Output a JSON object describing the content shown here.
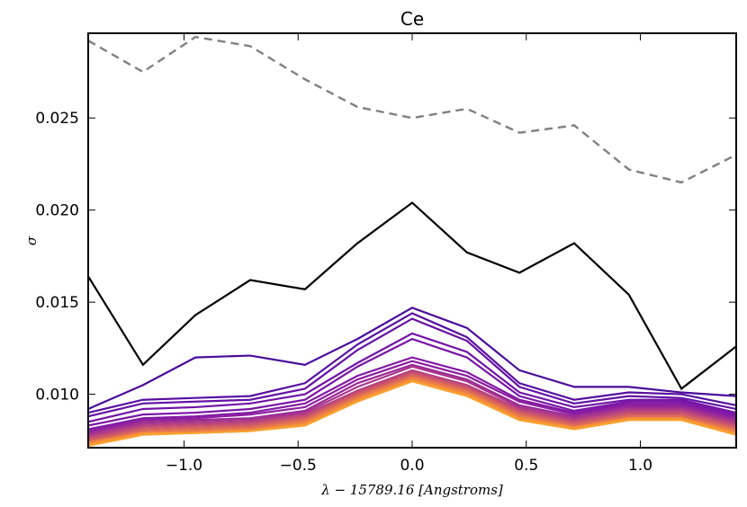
{
  "chart_data": {
    "type": "line",
    "title": "Ce",
    "xlabel": "λ − 15789.16 [Angstroms]",
    "ylabel": "σ",
    "xlim": [
      -1.42,
      1.42
    ],
    "ylim": [
      0.0071,
      0.0296
    ],
    "x": [
      -1.42,
      -1.18,
      -0.95,
      -0.71,
      -0.47,
      -0.24,
      0.0,
      0.24,
      0.47,
      0.71,
      0.95,
      1.18,
      1.42
    ],
    "xticks": [
      -1.0,
      -0.5,
      0.0,
      0.5,
      1.0
    ],
    "xtick_labels": [
      "−1.0",
      "−0.5",
      "0.0",
      "0.5",
      "1.0"
    ],
    "yticks": [
      0.01,
      0.015,
      0.02,
      0.025
    ],
    "ytick_labels": [
      "0.010",
      "0.015",
      "0.020",
      "0.025"
    ],
    "grid": false,
    "series": [
      {
        "style": "dashed",
        "color": "#808080",
        "values": [
          0.0292,
          0.0275,
          0.0294,
          0.0289,
          0.0271,
          0.0256,
          0.025,
          0.0255,
          0.0242,
          0.0246,
          0.0222,
          0.0215,
          0.023
        ]
      },
      {
        "style": "solid",
        "color": "#000000",
        "values": [
          0.0164,
          0.0116,
          0.0143,
          0.0162,
          0.0157,
          0.0182,
          0.0204,
          0.0177,
          0.0166,
          0.0182,
          0.0154,
          0.0103,
          0.0126
        ]
      },
      {
        "style": "solid",
        "color": "#4a0c9c",
        "values": [
          0.0092,
          0.0105,
          0.012,
          0.0121,
          0.0116,
          0.013,
          0.0147,
          0.0136,
          0.0113,
          0.0104,
          0.0104,
          0.0101,
          0.0099
        ]
      },
      {
        "style": "solid",
        "color": "#570fa0",
        "values": [
          0.009,
          0.0097,
          0.0098,
          0.0099,
          0.0106,
          0.0127,
          0.0144,
          0.0131,
          0.0106,
          0.0097,
          0.0101,
          0.01,
          0.0094
        ]
      },
      {
        "style": "solid",
        "color": "#6512a4",
        "values": [
          0.0088,
          0.0095,
          0.0096,
          0.0097,
          0.0103,
          0.0124,
          0.0141,
          0.0129,
          0.0104,
          0.0095,
          0.0099,
          0.0098,
          0.0092
        ]
      },
      {
        "style": "solid",
        "color": "#7113a6",
        "values": [
          0.0085,
          0.0092,
          0.0093,
          0.0095,
          0.01,
          0.0117,
          0.0133,
          0.0123,
          0.0101,
          0.0093,
          0.0097,
          0.0097,
          0.009
        ]
      },
      {
        "style": "solid",
        "color": "#7a15a6",
        "values": [
          0.0083,
          0.0089,
          0.009,
          0.0092,
          0.0097,
          0.0115,
          0.013,
          0.012,
          0.0099,
          0.0091,
          0.0096,
          0.0096,
          0.0089
        ]
      },
      {
        "style": "solid",
        "color": "#8218a4",
        "values": [
          0.0081,
          0.0087,
          0.0088,
          0.009,
          0.0095,
          0.011,
          0.012,
          0.0112,
          0.0097,
          0.009,
          0.0095,
          0.0095,
          0.0088
        ]
      },
      {
        "style": "solid",
        "color": "#8d1fa0",
        "values": [
          0.008,
          0.0086,
          0.0087,
          0.0089,
          0.0093,
          0.0108,
          0.0118,
          0.011,
          0.0096,
          0.0089,
          0.0094,
          0.0094,
          0.0087
        ]
      },
      {
        "style": "solid",
        "color": "#9a2a96",
        "values": [
          0.0079,
          0.0085,
          0.0086,
          0.0087,
          0.0091,
          0.0106,
          0.0116,
          0.0108,
          0.0094,
          0.0088,
          0.0093,
          0.0093,
          0.0086
        ]
      },
      {
        "style": "solid",
        "color": "#a8358b",
        "values": [
          0.0078,
          0.0084,
          0.0085,
          0.0086,
          0.009,
          0.0104,
          0.0115,
          0.0107,
          0.0093,
          0.0087,
          0.0092,
          0.0092,
          0.0085
        ]
      },
      {
        "style": "solid",
        "color": "#b6407f",
        "values": [
          0.0077,
          0.0083,
          0.0084,
          0.0085,
          0.0089,
          0.0102,
          0.0113,
          0.0105,
          0.0092,
          0.0086,
          0.0091,
          0.0091,
          0.0084
        ]
      },
      {
        "style": "solid",
        "color": "#c54e71",
        "values": [
          0.0076,
          0.0082,
          0.0083,
          0.0084,
          0.0088,
          0.0101,
          0.0112,
          0.0104,
          0.0091,
          0.0085,
          0.009,
          0.009,
          0.0083
        ]
      },
      {
        "style": "solid",
        "color": "#d35d62",
        "values": [
          0.0075,
          0.0081,
          0.0082,
          0.0083,
          0.0087,
          0.01,
          0.0111,
          0.0103,
          0.009,
          0.0084,
          0.0089,
          0.0089,
          0.0082
        ]
      },
      {
        "style": "solid",
        "color": "#e06c54",
        "values": [
          0.0074,
          0.008,
          0.0081,
          0.0082,
          0.0086,
          0.0099,
          0.011,
          0.0102,
          0.0089,
          0.0083,
          0.0088,
          0.0088,
          0.0081
        ]
      },
      {
        "style": "solid",
        "color": "#eb7d46",
        "values": [
          0.0074,
          0.0079,
          0.008,
          0.0081,
          0.0085,
          0.0098,
          0.0109,
          0.0101,
          0.0088,
          0.0082,
          0.0087,
          0.0087,
          0.008
        ]
      },
      {
        "style": "solid",
        "color": "#f48f39",
        "values": [
          0.0073,
          0.0079,
          0.0079,
          0.008,
          0.0084,
          0.0097,
          0.0108,
          0.01,
          0.0087,
          0.0082,
          0.0087,
          0.0087,
          0.0079
        ]
      },
      {
        "style": "solid",
        "color": "#f9a22f",
        "values": [
          0.0072,
          0.0078,
          0.0079,
          0.008,
          0.0083,
          0.0096,
          0.0107,
          0.0099,
          0.0086,
          0.0081,
          0.0086,
          0.0086,
          0.0078
        ]
      }
    ]
  }
}
